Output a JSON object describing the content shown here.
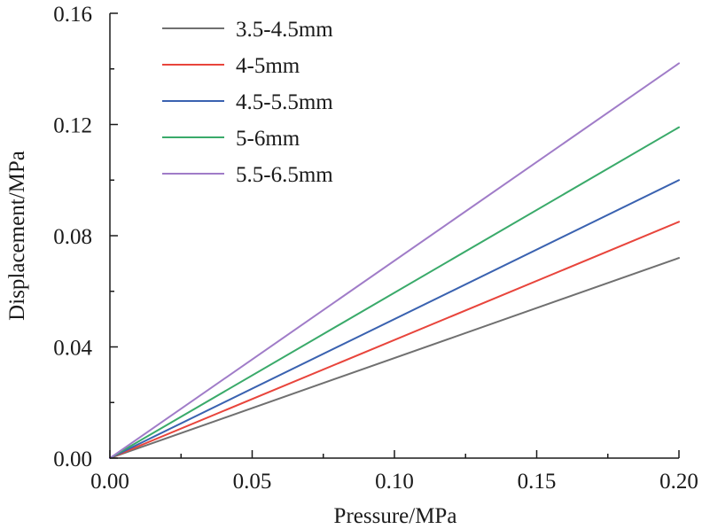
{
  "chart_data": {
    "type": "line",
    "title": "",
    "xlabel": "Pressure/MPa",
    "ylabel": "Displacement/MPa",
    "xlim": [
      0,
      0.2
    ],
    "ylim": [
      0,
      0.16
    ],
    "x_ticks": [
      0.0,
      0.05,
      0.1,
      0.15,
      0.2
    ],
    "x_tick_labels": [
      "0.00",
      "0.05",
      "0.10",
      "0.15",
      "0.20"
    ],
    "y_ticks": [
      0.0,
      0.04,
      0.08,
      0.12,
      0.16
    ],
    "y_tick_labels": [
      "0.00",
      "0.04",
      "0.08",
      "0.12",
      "0.16"
    ],
    "grid": false,
    "legend_position": "top-left",
    "series": [
      {
        "name": "3.5-4.5mm",
        "color": "#707070",
        "x": [
          0,
          0.2
        ],
        "y": [
          0,
          0.072
        ]
      },
      {
        "name": "4-5mm",
        "color": "#e8453c",
        "x": [
          0,
          0.2
        ],
        "y": [
          0,
          0.085
        ]
      },
      {
        "name": "4.5-5.5mm",
        "color": "#3a62b0",
        "x": [
          0,
          0.2
        ],
        "y": [
          0,
          0.1
        ]
      },
      {
        "name": "5-6mm",
        "color": "#3aaa6a",
        "x": [
          0,
          0.2
        ],
        "y": [
          0,
          0.119
        ]
      },
      {
        "name": "5.5-6.5mm",
        "color": "#a07cc8",
        "x": [
          0,
          0.2
        ],
        "y": [
          0,
          0.142
        ]
      }
    ]
  }
}
